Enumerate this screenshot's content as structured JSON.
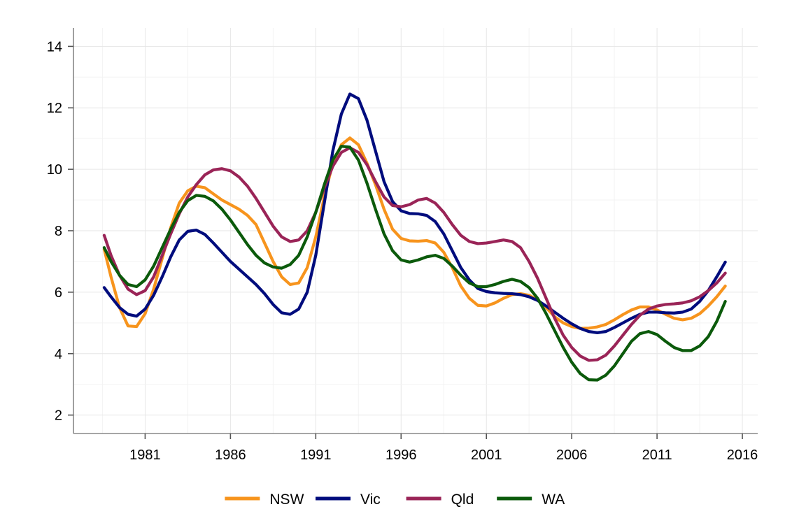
{
  "chart_data": {
    "type": "line",
    "title": "",
    "xlabel": "",
    "ylabel": "",
    "xlim": [
      1976.8,
      2016.9
    ],
    "ylim": [
      1.4,
      14.6
    ],
    "xticks": [
      1981,
      1986,
      1991,
      1996,
      2001,
      2006,
      2011,
      2016
    ],
    "yticks": [
      2,
      4,
      6,
      8,
      10,
      12,
      14
    ],
    "grid": true,
    "legend": "bottom",
    "series": [
      {
        "name": "NSW",
        "color": "#f7941d",
        "points": [
          [
            1978.6,
            7.4
          ],
          [
            1979.0,
            6.5
          ],
          [
            1979.5,
            5.5
          ],
          [
            1980.0,
            4.9
          ],
          [
            1980.5,
            4.88
          ],
          [
            1981.0,
            5.3
          ],
          [
            1981.5,
            6.1
          ],
          [
            1982.0,
            7.1
          ],
          [
            1982.5,
            8.1
          ],
          [
            1983.0,
            8.9
          ],
          [
            1983.5,
            9.3
          ],
          [
            1984.0,
            9.45
          ],
          [
            1984.5,
            9.4
          ],
          [
            1985.0,
            9.2
          ],
          [
            1985.5,
            9.0
          ],
          [
            1986.0,
            8.85
          ],
          [
            1986.5,
            8.7
          ],
          [
            1987.0,
            8.5
          ],
          [
            1987.5,
            8.2
          ],
          [
            1988.0,
            7.6
          ],
          [
            1988.5,
            7.0
          ],
          [
            1989.0,
            6.5
          ],
          [
            1989.5,
            6.25
          ],
          [
            1990.0,
            6.3
          ],
          [
            1990.5,
            6.8
          ],
          [
            1991.0,
            7.8
          ],
          [
            1991.5,
            9.1
          ],
          [
            1992.0,
            10.2
          ],
          [
            1992.5,
            10.8
          ],
          [
            1993.0,
            11.02
          ],
          [
            1993.5,
            10.8
          ],
          [
            1994.0,
            10.2
          ],
          [
            1994.5,
            9.5
          ],
          [
            1995.0,
            8.7
          ],
          [
            1995.5,
            8.05
          ],
          [
            1996.0,
            7.75
          ],
          [
            1996.5,
            7.67
          ],
          [
            1997.0,
            7.66
          ],
          [
            1997.5,
            7.68
          ],
          [
            1998.0,
            7.6
          ],
          [
            1998.5,
            7.3
          ],
          [
            1999.0,
            6.8
          ],
          [
            1999.5,
            6.2
          ],
          [
            2000.0,
            5.8
          ],
          [
            2000.5,
            5.57
          ],
          [
            2001.0,
            5.55
          ],
          [
            2001.5,
            5.65
          ],
          [
            2002.0,
            5.8
          ],
          [
            2002.5,
            5.92
          ],
          [
            2003.0,
            5.95
          ],
          [
            2003.5,
            5.9
          ],
          [
            2004.0,
            5.75
          ],
          [
            2004.5,
            5.5
          ],
          [
            2005.0,
            5.2
          ],
          [
            2005.5,
            5.0
          ],
          [
            2006.0,
            4.88
          ],
          [
            2006.5,
            4.82
          ],
          [
            2007.0,
            4.83
          ],
          [
            2007.5,
            4.87
          ],
          [
            2008.0,
            4.95
          ],
          [
            2008.5,
            5.1
          ],
          [
            2009.0,
            5.27
          ],
          [
            2009.5,
            5.42
          ],
          [
            2010.0,
            5.52
          ],
          [
            2010.5,
            5.52
          ],
          [
            2011.0,
            5.42
          ],
          [
            2011.5,
            5.28
          ],
          [
            2012.0,
            5.15
          ],
          [
            2012.5,
            5.1
          ],
          [
            2013.0,
            5.15
          ],
          [
            2013.5,
            5.3
          ],
          [
            2014.0,
            5.55
          ],
          [
            2014.5,
            5.85
          ],
          [
            2015.0,
            6.2
          ]
        ]
      },
      {
        "name": "Vic",
        "color": "#000c7d",
        "points": [
          [
            1978.6,
            6.15
          ],
          [
            1979.0,
            5.85
          ],
          [
            1979.5,
            5.5
          ],
          [
            1980.0,
            5.28
          ],
          [
            1980.5,
            5.22
          ],
          [
            1981.0,
            5.45
          ],
          [
            1981.5,
            5.9
          ],
          [
            1982.0,
            6.5
          ],
          [
            1982.5,
            7.15
          ],
          [
            1983.0,
            7.7
          ],
          [
            1983.5,
            7.98
          ],
          [
            1984.0,
            8.02
          ],
          [
            1984.5,
            7.88
          ],
          [
            1985.0,
            7.6
          ],
          [
            1985.5,
            7.3
          ],
          [
            1986.0,
            7.0
          ],
          [
            1986.5,
            6.75
          ],
          [
            1987.0,
            6.5
          ],
          [
            1987.5,
            6.25
          ],
          [
            1988.0,
            5.95
          ],
          [
            1988.5,
            5.6
          ],
          [
            1989.0,
            5.33
          ],
          [
            1989.5,
            5.28
          ],
          [
            1990.0,
            5.45
          ],
          [
            1990.5,
            6.0
          ],
          [
            1991.0,
            7.2
          ],
          [
            1991.5,
            8.9
          ],
          [
            1992.0,
            10.6
          ],
          [
            1992.5,
            11.8
          ],
          [
            1993.0,
            12.45
          ],
          [
            1993.5,
            12.3
          ],
          [
            1994.0,
            11.6
          ],
          [
            1994.5,
            10.6
          ],
          [
            1995.0,
            9.6
          ],
          [
            1995.5,
            8.95
          ],
          [
            1996.0,
            8.65
          ],
          [
            1996.5,
            8.56
          ],
          [
            1997.0,
            8.55
          ],
          [
            1997.5,
            8.5
          ],
          [
            1998.0,
            8.3
          ],
          [
            1998.5,
            7.9
          ],
          [
            1999.0,
            7.35
          ],
          [
            1999.5,
            6.8
          ],
          [
            2000.0,
            6.4
          ],
          [
            2000.5,
            6.12
          ],
          [
            2001.0,
            6.02
          ],
          [
            2001.5,
            5.98
          ],
          [
            2002.0,
            5.96
          ],
          [
            2002.5,
            5.95
          ],
          [
            2003.0,
            5.92
          ],
          [
            2003.5,
            5.85
          ],
          [
            2004.0,
            5.73
          ],
          [
            2004.5,
            5.55
          ],
          [
            2005.0,
            5.35
          ],
          [
            2005.5,
            5.15
          ],
          [
            2006.0,
            4.97
          ],
          [
            2006.5,
            4.82
          ],
          [
            2007.0,
            4.72
          ],
          [
            2007.5,
            4.68
          ],
          [
            2008.0,
            4.72
          ],
          [
            2008.5,
            4.85
          ],
          [
            2009.0,
            5.0
          ],
          [
            2009.5,
            5.15
          ],
          [
            2010.0,
            5.28
          ],
          [
            2010.5,
            5.35
          ],
          [
            2011.0,
            5.35
          ],
          [
            2011.5,
            5.33
          ],
          [
            2012.0,
            5.32
          ],
          [
            2012.5,
            5.35
          ],
          [
            2013.0,
            5.45
          ],
          [
            2013.5,
            5.7
          ],
          [
            2014.0,
            6.05
          ],
          [
            2014.5,
            6.5
          ],
          [
            2015.0,
            6.98
          ]
        ]
      },
      {
        "name": "Qld",
        "color": "#9a2457",
        "points": [
          [
            1978.6,
            7.85
          ],
          [
            1979.0,
            7.2
          ],
          [
            1979.5,
            6.55
          ],
          [
            1980.0,
            6.1
          ],
          [
            1980.5,
            5.92
          ],
          [
            1981.0,
            6.05
          ],
          [
            1981.5,
            6.5
          ],
          [
            1982.0,
            7.2
          ],
          [
            1982.5,
            7.9
          ],
          [
            1983.0,
            8.55
          ],
          [
            1983.5,
            9.1
          ],
          [
            1984.0,
            9.5
          ],
          [
            1984.5,
            9.82
          ],
          [
            1985.0,
            9.98
          ],
          [
            1985.5,
            10.02
          ],
          [
            1986.0,
            9.95
          ],
          [
            1986.5,
            9.75
          ],
          [
            1987.0,
            9.45
          ],
          [
            1987.5,
            9.05
          ],
          [
            1988.0,
            8.6
          ],
          [
            1988.5,
            8.15
          ],
          [
            1989.0,
            7.8
          ],
          [
            1989.5,
            7.65
          ],
          [
            1990.0,
            7.7
          ],
          [
            1990.5,
            8.0
          ],
          [
            1991.0,
            8.6
          ],
          [
            1991.5,
            9.4
          ],
          [
            1992.0,
            10.1
          ],
          [
            1992.5,
            10.55
          ],
          [
            1993.0,
            10.7
          ],
          [
            1993.5,
            10.55
          ],
          [
            1994.0,
            10.15
          ],
          [
            1994.5,
            9.6
          ],
          [
            1995.0,
            9.1
          ],
          [
            1995.5,
            8.82
          ],
          [
            1996.0,
            8.78
          ],
          [
            1996.5,
            8.85
          ],
          [
            1997.0,
            9.0
          ],
          [
            1997.5,
            9.05
          ],
          [
            1998.0,
            8.9
          ],
          [
            1998.5,
            8.6
          ],
          [
            1999.0,
            8.2
          ],
          [
            1999.5,
            7.85
          ],
          [
            2000.0,
            7.65
          ],
          [
            2000.5,
            7.58
          ],
          [
            2001.0,
            7.6
          ],
          [
            2001.5,
            7.65
          ],
          [
            2002.0,
            7.7
          ],
          [
            2002.5,
            7.65
          ],
          [
            2003.0,
            7.45
          ],
          [
            2003.5,
            7.0
          ],
          [
            2004.0,
            6.45
          ],
          [
            2004.5,
            5.8
          ],
          [
            2005.0,
            5.15
          ],
          [
            2005.5,
            4.6
          ],
          [
            2006.0,
            4.2
          ],
          [
            2006.5,
            3.92
          ],
          [
            2007.0,
            3.78
          ],
          [
            2007.5,
            3.8
          ],
          [
            2008.0,
            3.95
          ],
          [
            2008.5,
            4.25
          ],
          [
            2009.0,
            4.6
          ],
          [
            2009.5,
            4.95
          ],
          [
            2010.0,
            5.25
          ],
          [
            2010.5,
            5.45
          ],
          [
            2011.0,
            5.55
          ],
          [
            2011.5,
            5.6
          ],
          [
            2012.0,
            5.62
          ],
          [
            2012.5,
            5.65
          ],
          [
            2013.0,
            5.72
          ],
          [
            2013.5,
            5.85
          ],
          [
            2014.0,
            6.05
          ],
          [
            2014.5,
            6.3
          ],
          [
            2015.0,
            6.62
          ]
        ]
      },
      {
        "name": "WA",
        "color": "#0b5a0b",
        "points": [
          [
            1978.6,
            7.45
          ],
          [
            1979.0,
            7.0
          ],
          [
            1979.5,
            6.55
          ],
          [
            1980.0,
            6.25
          ],
          [
            1980.5,
            6.18
          ],
          [
            1981.0,
            6.4
          ],
          [
            1981.5,
            6.85
          ],
          [
            1982.0,
            7.45
          ],
          [
            1982.5,
            8.05
          ],
          [
            1983.0,
            8.6
          ],
          [
            1983.5,
            8.98
          ],
          [
            1984.0,
            9.15
          ],
          [
            1984.5,
            9.12
          ],
          [
            1985.0,
            8.97
          ],
          [
            1985.5,
            8.7
          ],
          [
            1986.0,
            8.35
          ],
          [
            1986.5,
            7.95
          ],
          [
            1987.0,
            7.55
          ],
          [
            1987.5,
            7.2
          ],
          [
            1988.0,
            6.95
          ],
          [
            1988.5,
            6.82
          ],
          [
            1989.0,
            6.78
          ],
          [
            1989.5,
            6.9
          ],
          [
            1990.0,
            7.2
          ],
          [
            1990.5,
            7.8
          ],
          [
            1991.0,
            8.6
          ],
          [
            1991.5,
            9.5
          ],
          [
            1992.0,
            10.3
          ],
          [
            1992.5,
            10.75
          ],
          [
            1993.0,
            10.72
          ],
          [
            1993.5,
            10.3
          ],
          [
            1994.0,
            9.55
          ],
          [
            1994.5,
            8.7
          ],
          [
            1995.0,
            7.9
          ],
          [
            1995.5,
            7.35
          ],
          [
            1996.0,
            7.05
          ],
          [
            1996.5,
            6.98
          ],
          [
            1997.0,
            7.05
          ],
          [
            1997.5,
            7.15
          ],
          [
            1998.0,
            7.2
          ],
          [
            1998.5,
            7.1
          ],
          [
            1999.0,
            6.85
          ],
          [
            1999.5,
            6.55
          ],
          [
            2000.0,
            6.3
          ],
          [
            2000.5,
            6.18
          ],
          [
            2001.0,
            6.18
          ],
          [
            2001.5,
            6.25
          ],
          [
            2002.0,
            6.35
          ],
          [
            2002.5,
            6.42
          ],
          [
            2003.0,
            6.35
          ],
          [
            2003.5,
            6.15
          ],
          [
            2004.0,
            5.8
          ],
          [
            2004.5,
            5.3
          ],
          [
            2005.0,
            4.75
          ],
          [
            2005.5,
            4.2
          ],
          [
            2006.0,
            3.72
          ],
          [
            2006.5,
            3.35
          ],
          [
            2007.0,
            3.15
          ],
          [
            2007.5,
            3.14
          ],
          [
            2008.0,
            3.3
          ],
          [
            2008.5,
            3.6
          ],
          [
            2009.0,
            4.0
          ],
          [
            2009.5,
            4.4
          ],
          [
            2010.0,
            4.65
          ],
          [
            2010.5,
            4.72
          ],
          [
            2011.0,
            4.62
          ],
          [
            2011.5,
            4.4
          ],
          [
            2012.0,
            4.2
          ],
          [
            2012.5,
            4.1
          ],
          [
            2013.0,
            4.1
          ],
          [
            2013.5,
            4.25
          ],
          [
            2014.0,
            4.55
          ],
          [
            2014.5,
            5.05
          ],
          [
            2015.0,
            5.7
          ]
        ]
      }
    ]
  }
}
